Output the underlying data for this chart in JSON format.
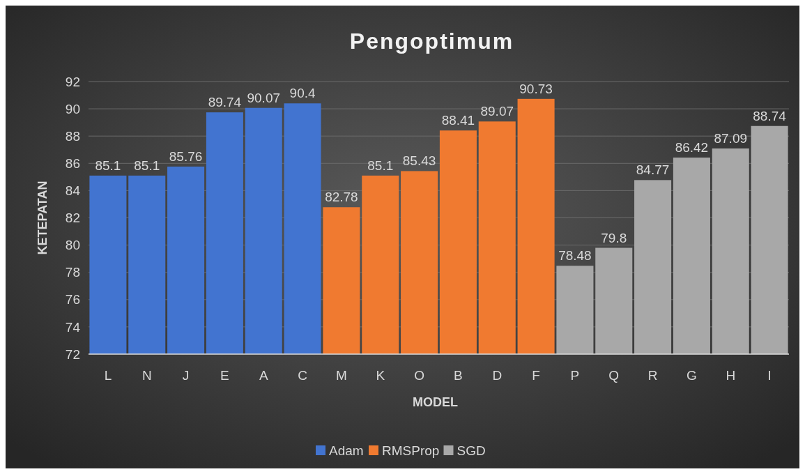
{
  "chart_data": {
    "type": "bar",
    "title": "Pengoptimum",
    "xlabel": "MODEL",
    "ylabel": "KETEPATAN",
    "categories": [
      "L",
      "N",
      "J",
      "E",
      "A",
      "C",
      "M",
      "K",
      "O",
      "B",
      "D",
      "F",
      "P",
      "Q",
      "R",
      "G",
      "H",
      "I"
    ],
    "series": [
      {
        "name": "Adam",
        "color": "#4274d0",
        "values": [
          85.1,
          85.1,
          85.76,
          89.74,
          90.07,
          90.4,
          null,
          null,
          null,
          null,
          null,
          null,
          null,
          null,
          null,
          null,
          null,
          null
        ]
      },
      {
        "name": "RMSProp",
        "color": "#f07a30",
        "values": [
          null,
          null,
          null,
          null,
          null,
          null,
          82.78,
          85.1,
          85.43,
          88.41,
          89.07,
          90.73,
          null,
          null,
          null,
          null,
          null,
          null
        ]
      },
      {
        "name": "SGD",
        "color": "#a8a8a8",
        "values": [
          null,
          null,
          null,
          null,
          null,
          null,
          null,
          null,
          null,
          null,
          null,
          null,
          78.48,
          79.8,
          84.77,
          86.42,
          87.09,
          88.74
        ]
      }
    ],
    "ylim": [
      72,
      92
    ],
    "yticks": [
      72,
      74,
      76,
      78,
      80,
      82,
      84,
      86,
      88,
      90,
      92
    ],
    "grid": "y",
    "legend": "bottom",
    "data_labels": true
  }
}
